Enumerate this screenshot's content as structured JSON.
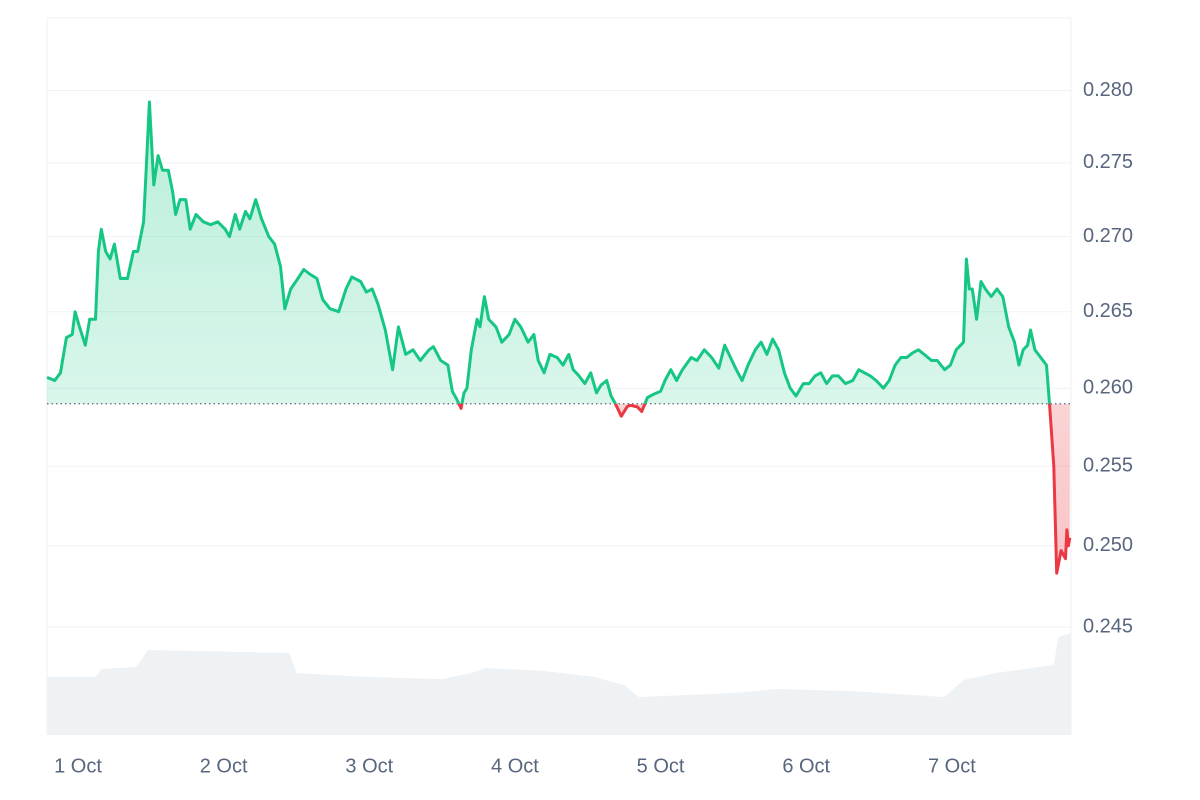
{
  "chart_data": {
    "type": "line",
    "x": [
      0.787,
      0.84,
      0.88,
      0.92,
      0.96,
      0.98,
      1.01,
      1.05,
      1.08,
      1.12,
      1.14,
      1.16,
      1.19,
      1.22,
      1.25,
      1.29,
      1.34,
      1.38,
      1.41,
      1.45,
      1.47,
      1.49,
      1.52,
      1.55,
      1.58,
      1.62,
      1.65,
      1.67,
      1.7,
      1.74,
      1.77,
      1.81,
      1.86,
      1.91,
      1.96,
      2.01,
      2.04,
      2.08,
      2.11,
      2.15,
      2.18,
      2.22,
      2.26,
      2.31,
      2.35,
      2.39,
      2.42,
      2.46,
      2.51,
      2.55,
      2.59,
      2.64,
      2.68,
      2.73,
      2.79,
      2.84,
      2.88,
      2.94,
      2.98,
      3.02,
      3.06,
      3.11,
      3.16,
      3.2,
      3.25,
      3.3,
      3.35,
      3.41,
      3.44,
      3.49,
      3.54,
      3.57,
      3.6,
      3.63,
      3.65,
      3.67,
      3.7,
      3.74,
      3.76,
      3.79,
      3.82,
      3.87,
      3.91,
      3.96,
      4.0,
      4.04,
      4.09,
      4.13,
      4.16,
      4.2,
      4.24,
      4.29,
      4.33,
      4.37,
      4.4,
      4.44,
      4.48,
      4.52,
      4.56,
      4.59,
      4.63,
      4.66,
      4.69,
      4.73,
      4.77,
      4.79,
      4.84,
      4.87,
      4.91,
      4.95,
      5.0,
      5.03,
      5.07,
      5.11,
      5.15,
      5.21,
      5.25,
      5.3,
      5.35,
      5.4,
      5.44,
      5.48,
      5.52,
      5.56,
      5.6,
      5.65,
      5.69,
      5.73,
      5.77,
      5.81,
      5.85,
      5.89,
      5.93,
      5.98,
      6.02,
      6.06,
      6.1,
      6.14,
      6.18,
      6.22,
      6.27,
      6.32,
      6.36,
      6.4,
      6.44,
      6.48,
      6.53,
      6.57,
      6.61,
      6.65,
      6.69,
      6.73,
      6.77,
      6.81,
      6.86,
      6.9,
      6.95,
      6.99,
      7.03,
      7.08,
      7.1,
      7.12,
      7.14,
      7.17,
      7.2,
      7.23,
      7.27,
      7.31,
      7.35,
      7.39,
      7.43,
      7.46,
      7.49,
      7.52,
      7.54,
      7.57,
      7.61,
      7.65,
      7.67,
      7.7,
      7.72,
      7.75,
      7.78,
      7.79,
      7.8,
      7.81
    ],
    "series": [
      {
        "color": "#16c784",
        "color_below": "#ea3943",
        "values": [
          0.2607,
          0.2605,
          0.261,
          0.2633,
          0.2635,
          0.265,
          0.264,
          0.2628,
          0.2645,
          0.2645,
          0.269,
          0.2705,
          0.269,
          0.2685,
          0.2695,
          0.2672,
          0.2672,
          0.269,
          0.269,
          0.271,
          0.275,
          0.2792,
          0.2735,
          0.2755,
          0.2745,
          0.2745,
          0.273,
          0.2715,
          0.2725,
          0.2725,
          0.2705,
          0.2715,
          0.271,
          0.2708,
          0.271,
          0.2705,
          0.27,
          0.2715,
          0.2705,
          0.2717,
          0.2712,
          0.2725,
          0.2712,
          0.27,
          0.2695,
          0.268,
          0.2652,
          0.2665,
          0.2672,
          0.2678,
          0.2675,
          0.2672,
          0.2658,
          0.2652,
          0.265,
          0.2665,
          0.2673,
          0.267,
          0.2663,
          0.2665,
          0.2655,
          0.2638,
          0.2612,
          0.264,
          0.2622,
          0.2625,
          0.2618,
          0.2625,
          0.2627,
          0.2618,
          0.2615,
          0.2598,
          0.2593,
          0.2587,
          0.2597,
          0.26,
          0.2625,
          0.2645,
          0.264,
          0.266,
          0.2645,
          0.264,
          0.263,
          0.2635,
          0.2645,
          0.264,
          0.263,
          0.2635,
          0.2618,
          0.261,
          0.2622,
          0.262,
          0.2615,
          0.2622,
          0.2612,
          0.2608,
          0.2603,
          0.261,
          0.2597,
          0.2602,
          0.2605,
          0.2595,
          0.259,
          0.2582,
          0.2588,
          0.2589,
          0.2588,
          0.2585,
          0.2594,
          0.2596,
          0.2598,
          0.2605,
          0.2612,
          0.2605,
          0.2612,
          0.262,
          0.2618,
          0.2625,
          0.262,
          0.2613,
          0.2628,
          0.262,
          0.2612,
          0.2605,
          0.2615,
          0.2625,
          0.263,
          0.2622,
          0.2632,
          0.2625,
          0.261,
          0.26,
          0.2595,
          0.2603,
          0.2603,
          0.2608,
          0.261,
          0.2603,
          0.2608,
          0.2608,
          0.2603,
          0.2605,
          0.2612,
          0.261,
          0.2608,
          0.2605,
          0.26,
          0.2605,
          0.2615,
          0.262,
          0.262,
          0.2623,
          0.2625,
          0.2622,
          0.2618,
          0.2618,
          0.2612,
          0.2615,
          0.2625,
          0.263,
          0.2685,
          0.2665,
          0.2665,
          0.2645,
          0.267,
          0.2665,
          0.266,
          0.2665,
          0.266,
          0.264,
          0.263,
          0.2615,
          0.2625,
          0.2628,
          0.2638,
          0.2625,
          0.262,
          0.2615,
          0.2591,
          0.255,
          0.2483,
          0.2497,
          0.2492,
          0.251,
          0.25,
          0.2505
        ]
      }
    ],
    "volume": {
      "color": "#eff2f5",
      "x": [
        0.787,
        1.12,
        1.16,
        1.4,
        1.48,
        2.45,
        2.5,
        3.0,
        3.5,
        3.7,
        3.8,
        4.2,
        4.55,
        4.75,
        4.85,
        5.5,
        5.8,
        6.3,
        6.95,
        7.08,
        7.3,
        7.7,
        7.73,
        7.818
      ],
      "values": [
        58,
        58,
        66,
        68,
        85,
        82,
        62,
        58,
        56,
        62,
        67,
        64,
        58,
        50,
        38,
        42,
        46,
        44,
        38,
        55,
        62,
        70,
        98,
        102
      ],
      "y2lim": [
        0,
        100
      ]
    },
    "baseline": 0.259,
    "xlim": [
      0.787,
      7.818
    ],
    "xticks": [
      {
        "value": 1,
        "label": "1 Oct"
      },
      {
        "value": 2,
        "label": "2 Oct"
      },
      {
        "value": 3,
        "label": "3 Oct"
      },
      {
        "value": 4,
        "label": "4 Oct"
      },
      {
        "value": 5,
        "label": "5 Oct"
      },
      {
        "value": 6,
        "label": "6 Oct"
      },
      {
        "value": 7,
        "label": "7 Oct"
      }
    ],
    "ylim": [
      0.2385,
      0.2851
    ],
    "yscale": "log",
    "yticks": [
      0.245,
      {
        "value": 0.25,
        "label": "0.250"
      },
      0.255,
      {
        "value": 0.26,
        "label": "0.260"
      },
      0.265,
      {
        "value": 0.27,
        "label": "0.270"
      },
      0.275,
      {
        "value": 0.28,
        "label": "0.280"
      }
    ],
    "grid": true
  }
}
